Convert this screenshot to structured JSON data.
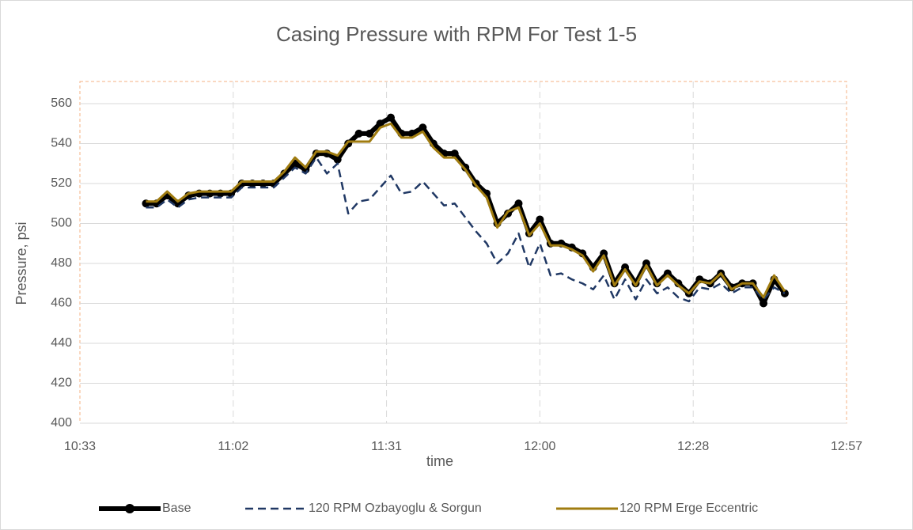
{
  "chart_data": {
    "type": "line",
    "title": "Casing Pressure with RPM For Test 1-5",
    "x_label": "time",
    "y_label": "Pressure, psi",
    "x": [
      646,
      648,
      650,
      652,
      654,
      656,
      658,
      660,
      662,
      664,
      666,
      668,
      670,
      672,
      674,
      676,
      678,
      680,
      682,
      684,
      686,
      688,
      690,
      692,
      694,
      696,
      698,
      700,
      702,
      704,
      706,
      708,
      710,
      712,
      714,
      716,
      718,
      720,
      722,
      724,
      726,
      728,
      730,
      732,
      734,
      736,
      738,
      740,
      742,
      744,
      746,
      748,
      750,
      752,
      754,
      756,
      758,
      760,
      762,
      764,
      766
    ],
    "series": [
      {
        "name": "Base",
        "color": "#000000",
        "style": "marker",
        "values": [
          510,
          510,
          514,
          510,
          514,
          515,
          515,
          515,
          515,
          520,
          520,
          520,
          520,
          525,
          530,
          527,
          535,
          535,
          532,
          540,
          545,
          545,
          550,
          553,
          545,
          545,
          548,
          540,
          535,
          535,
          528,
          520,
          515,
          500,
          505,
          510,
          495,
          502,
          490,
          490,
          488,
          485,
          478,
          485,
          470,
          478,
          470,
          480,
          470,
          475,
          470,
          465,
          472,
          470,
          475,
          468,
          470,
          470,
          460,
          472,
          465
        ]
      },
      {
        "name": "120 RPM Ozbayoglu & Sorgun",
        "color": "#203864",
        "style": "dashed",
        "values": [
          508,
          508,
          512,
          508,
          512,
          513,
          513,
          513,
          513,
          518,
          518,
          518,
          518,
          523,
          528,
          525,
          533,
          525,
          530,
          505,
          511,
          512,
          518,
          524,
          515,
          516,
          521,
          515,
          509,
          510,
          503,
          496,
          490,
          480,
          485,
          495,
          478,
          490,
          474,
          475,
          472,
          470,
          467,
          474,
          462,
          472,
          462,
          472,
          465,
          468,
          463,
          461,
          468,
          467,
          470,
          465,
          468,
          468,
          462,
          468,
          465
        ]
      },
      {
        "name": "120 RPM Erge Eccentric",
        "color": "#a07c10",
        "style": "solid",
        "values": [
          511,
          511,
          516,
          511,
          515,
          516,
          516,
          516,
          516,
          521,
          521,
          521,
          521,
          526,
          533,
          528,
          536,
          536,
          534,
          541,
          541,
          541,
          548,
          550,
          543,
          543,
          546,
          538,
          533,
          533,
          527,
          519,
          513,
          498,
          506,
          508,
          494,
          500,
          489,
          489,
          487,
          484,
          476,
          484,
          469,
          477,
          469,
          479,
          469,
          474,
          469,
          465,
          471,
          470,
          475,
          467,
          470,
          470,
          463,
          474,
          466
        ]
      }
    ],
    "xlim": [
      633.6,
      777.6
    ],
    "xticks": [
      {
        "value": 633.6,
        "label": "10:33"
      },
      {
        "value": 662.4,
        "label": "11:02"
      },
      {
        "value": 691.2,
        "label": "11:31"
      },
      {
        "value": 720,
        "label": "12:00"
      },
      {
        "value": 748.8,
        "label": "12:28"
      },
      {
        "value": 777.6,
        "label": "12:57"
      }
    ],
    "ylim": [
      400,
      560
    ],
    "yticks": [
      400,
      420,
      440,
      460,
      480,
      500,
      520,
      540,
      560
    ],
    "grid": true,
    "legend": "bottom"
  }
}
